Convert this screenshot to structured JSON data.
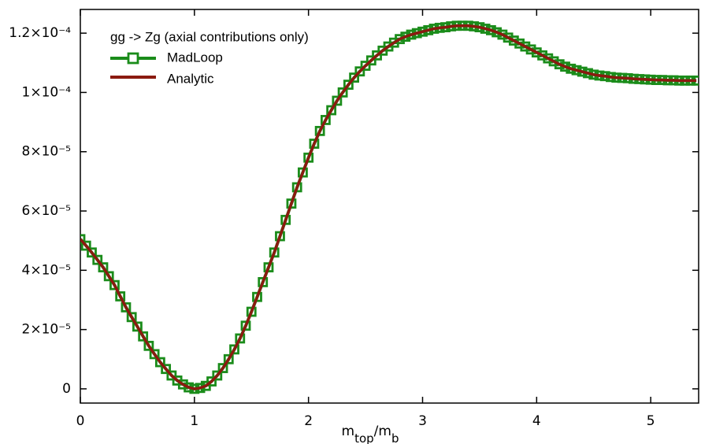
{
  "chart_data": {
    "type": "line",
    "legend_title": "gg -> Zg (axial contributions only)",
    "x_label": [
      "m",
      "top",
      "/m",
      "b"
    ],
    "x": [
      0,
      0.05,
      0.1,
      0.15,
      0.2,
      0.25,
      0.3,
      0.35,
      0.4,
      0.45,
      0.5,
      0.55,
      0.6,
      0.65,
      0.7,
      0.75,
      0.8,
      0.85,
      0.9,
      0.95,
      1.0,
      1.05,
      1.1,
      1.15,
      1.2,
      1.25,
      1.3,
      1.35,
      1.4,
      1.45,
      1.5,
      1.55,
      1.6,
      1.65,
      1.7,
      1.75,
      1.8,
      1.85,
      1.9,
      1.95,
      2.0,
      2.05,
      2.1,
      2.15,
      2.2,
      2.25,
      2.3,
      2.35,
      2.4,
      2.45,
      2.5,
      2.55,
      2.6,
      2.65,
      2.7,
      2.75,
      2.8,
      2.85,
      2.9,
      2.95,
      3.0,
      3.05,
      3.1,
      3.15,
      3.2,
      3.25,
      3.3,
      3.35,
      3.4,
      3.45,
      3.5,
      3.55,
      3.6,
      3.65,
      3.7,
      3.75,
      3.8,
      3.85,
      3.9,
      3.95,
      4.0,
      4.05,
      4.1,
      4.15,
      4.2,
      4.25,
      4.3,
      4.35,
      4.4,
      4.45,
      4.5,
      4.55,
      4.6,
      4.65,
      4.7,
      4.75,
      4.8,
      4.85,
      4.9,
      4.95,
      5.0,
      5.05,
      5.1,
      5.15,
      5.2,
      5.25,
      5.3,
      5.35,
      5.4
    ],
    "series": [
      {
        "name": "MadLoop",
        "color": "#1a8c1a",
        "marker": "square",
        "values": [
          5.05e-05,
          4.83e-05,
          4.6e-05,
          4.35e-05,
          4.1e-05,
          3.8e-05,
          3.5e-05,
          3.12e-05,
          2.75e-05,
          2.42e-05,
          2.1e-05,
          1.77e-05,
          1.45e-05,
          1.17e-05,
          9e-06,
          6.7e-06,
          4.5e-06,
          2.8e-06,
          1.5e-06,
          5e-07,
          0,
          3e-07,
          1e-06,
          2.5e-06,
          4.5e-06,
          7e-06,
          1e-05,
          1.33e-05,
          1.7e-05,
          2.13e-05,
          2.6e-05,
          3.1e-05,
          3.6e-05,
          4.1e-05,
          4.6e-05,
          5.15e-05,
          5.7e-05,
          6.25e-05,
          6.8e-05,
          7.3e-05,
          7.8e-05,
          8.27e-05,
          8.7e-05,
          9.07e-05,
          9.4e-05,
          9.72e-05,
          0.0001,
          0.0001026,
          0.000105,
          0.0001071,
          0.000109,
          0.0001108,
          0.0001125,
          0.0001141,
          0.0001155,
          0.0001168,
          0.000118,
          0.0001188,
          0.0001195,
          0.00012,
          0.0001205,
          0.000121,
          0.0001215,
          0.0001218,
          0.000122,
          0.0001223,
          0.0001225,
          0.0001225,
          0.0001225,
          0.0001223,
          0.000122,
          0.0001215,
          0.000121,
          0.0001203,
          0.0001195,
          0.0001185,
          0.0001175,
          0.0001165,
          0.0001155,
          0.0001145,
          0.0001135,
          0.0001125,
          0.0001115,
          0.0001105,
          0.0001095,
          0.0001087,
          0.000108,
          0.0001075,
          0.000107,
          0.0001065,
          0.000106,
          0.0001057,
          0.0001055,
          0.0001052,
          0.000105,
          0.0001049,
          0.0001048,
          0.0001046,
          0.0001045,
          0.0001044,
          0.0001043,
          0.0001042,
          0.0001042,
          0.0001041,
          0.0001041,
          0.000104,
          0.000104,
          0.000104,
          0.000104
        ]
      },
      {
        "name": "Analytic",
        "color": "#8b1a10",
        "values": [
          5.05e-05,
          4.83e-05,
          4.6e-05,
          4.35e-05,
          4.1e-05,
          3.8e-05,
          3.5e-05,
          3.12e-05,
          2.75e-05,
          2.42e-05,
          2.1e-05,
          1.77e-05,
          1.45e-05,
          1.17e-05,
          9e-06,
          6.7e-06,
          4.5e-06,
          2.8e-06,
          1.5e-06,
          5e-07,
          0,
          3e-07,
          1e-06,
          2.5e-06,
          4.5e-06,
          7e-06,
          1e-05,
          1.33e-05,
          1.7e-05,
          2.13e-05,
          2.6e-05,
          3.1e-05,
          3.6e-05,
          4.1e-05,
          4.6e-05,
          5.15e-05,
          5.7e-05,
          6.25e-05,
          6.8e-05,
          7.3e-05,
          7.8e-05,
          8.27e-05,
          8.7e-05,
          9.07e-05,
          9.4e-05,
          9.72e-05,
          0.0001,
          0.0001026,
          0.000105,
          0.0001071,
          0.000109,
          0.0001108,
          0.0001125,
          0.0001141,
          0.0001155,
          0.0001168,
          0.000118,
          0.0001188,
          0.0001195,
          0.00012,
          0.0001205,
          0.000121,
          0.0001215,
          0.0001218,
          0.000122,
          0.0001223,
          0.0001225,
          0.0001225,
          0.0001225,
          0.0001223,
          0.000122,
          0.0001215,
          0.000121,
          0.0001203,
          0.0001195,
          0.0001185,
          0.0001175,
          0.0001165,
          0.0001155,
          0.0001145,
          0.0001135,
          0.0001125,
          0.0001115,
          0.0001105,
          0.0001095,
          0.0001087,
          0.000108,
          0.0001075,
          0.000107,
          0.0001065,
          0.000106,
          0.0001057,
          0.0001055,
          0.0001052,
          0.000105,
          0.0001049,
          0.0001048,
          0.0001046,
          0.0001045,
          0.0001044,
          0.0001043,
          0.0001042,
          0.0001042,
          0.0001041,
          0.0001041,
          0.000104,
          0.000104,
          0.000104,
          0.000104
        ]
      }
    ],
    "xlim": [
      0,
      5.42
    ],
    "xticks": [
      0,
      1,
      2,
      3,
      4,
      5
    ],
    "ylim": [
      -4.8e-06,
      0.000128
    ],
    "yticks": [
      0,
      {
        "value": 2e-05,
        "label": "2×10⁻⁵"
      },
      {
        "value": 4e-05,
        "label": "4×10⁻⁵"
      },
      {
        "value": 6e-05,
        "label": "6×10⁻⁵"
      },
      {
        "value": 8e-05,
        "label": "8×10⁻⁵"
      },
      {
        "value": 0.0001,
        "label": "1×10⁻⁴"
      },
      {
        "value": 0.00012,
        "label": "1.2×10⁻⁴"
      }
    ],
    "grid": false
  }
}
